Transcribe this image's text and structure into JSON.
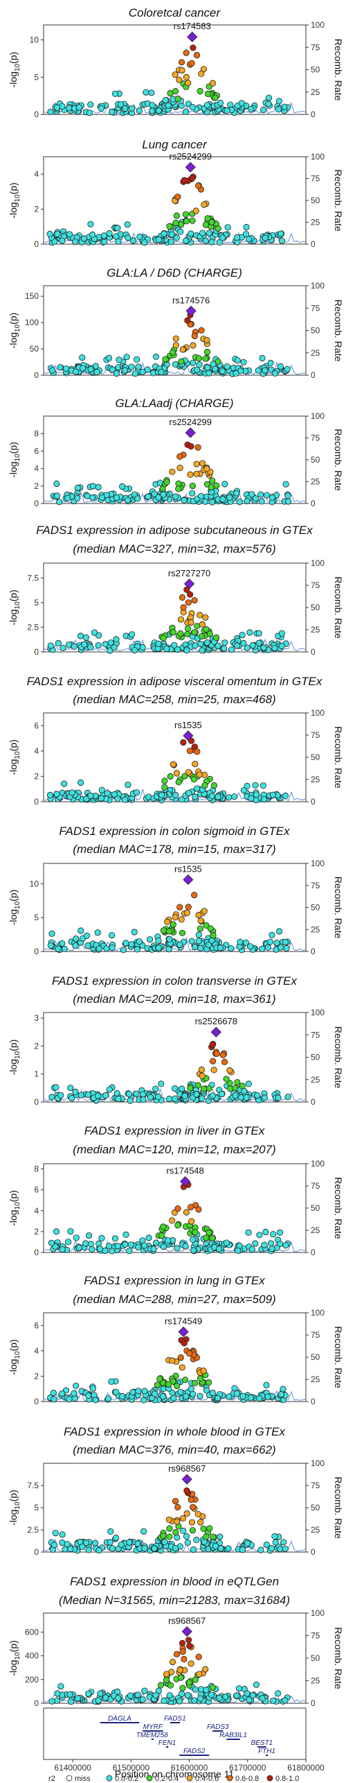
{
  "chart_data": [
    {
      "type": "scatter",
      "title": "Coloretcal cancer",
      "ylabel": "-log10(p)",
      "ylabel2": "Recomb. Rate",
      "ylim": [
        0,
        12
      ],
      "yticks": [
        0,
        5,
        10
      ],
      "lead_snp": "rs174583",
      "lead_x": 61605000,
      "lead_y": 10.4,
      "peak": 10.4
    },
    {
      "type": "scatter",
      "title": "Lung cancer",
      "ylabel": "-log10(p)",
      "ylabel2": "Recomb. Rate",
      "ylim": [
        0,
        5
      ],
      "yticks": [
        0,
        2,
        4
      ],
      "lead_snp": "rs2524299",
      "lead_x": 61602000,
      "lead_y": 4.4,
      "peak": 4.4
    },
    {
      "type": "scatter",
      "title": "GLA:LA / D6D (CHARGE)",
      "ylabel": "-log10(p)",
      "ylabel2": "Recomb. Rate",
      "ylim": [
        0,
        170
      ],
      "yticks": [
        0,
        50,
        100,
        150
      ],
      "lead_snp": "rs174576",
      "lead_x": 61603000,
      "lead_y": 122,
      "peak": 122
    },
    {
      "type": "scatter",
      "title": "GLA:LAadj (CHARGE)",
      "ylabel": "-log10(p)",
      "ylabel2": "Recomb. Rate",
      "ylim": [
        0,
        10
      ],
      "yticks": [
        0,
        2,
        4,
        6,
        8
      ],
      "lead_snp": "rs2524299",
      "lead_x": 61602000,
      "lead_y": 8.1,
      "peak": 8.1
    },
    {
      "type": "scatter",
      "title": "FADS1 expression in adipose subcutaneous in GTEx",
      "subtitle": "(median MAC=327, min=32, max=576)",
      "ylabel": "-log10(p)",
      "ylabel2": "Recomb. Rate",
      "ylim": [
        0,
        9
      ],
      "yticks": [
        0,
        2.5,
        5,
        7.5
      ],
      "lead_snp": "rs2727270",
      "lead_x": 61600000,
      "lead_y": 6.9,
      "peak": 6.9
    },
    {
      "type": "scatter",
      "title": "FADS1 expression in adipose visceral omentum in GTEx",
      "subtitle": "(median MAC=258, min=25, max=468)",
      "ylabel": "-log10(p)",
      "ylabel2": "Recomb. Rate",
      "ylim": [
        0,
        7
      ],
      "yticks": [
        0,
        2,
        4,
        6
      ],
      "lead_snp": "rs1535",
      "lead_x": 61598000,
      "lead_y": 5.2,
      "peak": 5.2
    },
    {
      "type": "scatter",
      "title": "FADS1 expression in colon sigmoid in GTEx",
      "subtitle": "(median MAC=178, min=15, max=317)",
      "ylabel": "-log10(p)",
      "ylabel2": "Recomb. Rate",
      "ylim": [
        0,
        13
      ],
      "yticks": [
        0,
        5,
        10
      ],
      "lead_snp": "rs1535",
      "lead_x": 61598000,
      "lead_y": 10.6,
      "peak": 10.6
    },
    {
      "type": "scatter",
      "title": "FADS1 expression in colon transverse in GTEx",
      "subtitle": "(median MAC=209, min=18, max=361)",
      "ylabel": "-log10(p)",
      "ylabel2": "Recomb. Rate",
      "ylim": [
        0,
        3.2
      ],
      "yticks": [
        0,
        1,
        2,
        3
      ],
      "lead_snp": "rs2526678",
      "lead_x": 61646000,
      "lead_y": 2.5,
      "peak": 2.3
    },
    {
      "type": "scatter",
      "title": "FADS1 expression in liver in GTEx",
      "subtitle": "(median MAC=120, min=12, max=207)",
      "ylabel": "-log10(p)",
      "ylabel2": "Recomb. Rate",
      "ylim": [
        0,
        8.5
      ],
      "yticks": [
        0,
        2,
        4,
        6,
        8
      ],
      "lead_snp": "rs174548",
      "lead_x": 61593000,
      "lead_y": 6.8,
      "peak": 6.8
    },
    {
      "type": "scatter",
      "title": "FADS1 expression in lung in GTEx",
      "subtitle": "(median MAC=288, min=27, max=509)",
      "ylabel": "-log10(p)",
      "ylabel2": "Recomb. Rate",
      "ylim": [
        0,
        7
      ],
      "yticks": [
        0,
        2,
        4,
        6
      ],
      "lead_snp": "rs174549",
      "lead_x": 61590000,
      "lead_y": 5.5,
      "peak": 5.5
    },
    {
      "type": "scatter",
      "title": "FADS1 expression in whole blood in GTEx",
      "subtitle": "(median MAC=376, min=40, max=662)",
      "ylabel": "-log10(p)",
      "ylabel2": "Recomb. Rate",
      "ylim": [
        0,
        10
      ],
      "yticks": [
        0,
        2.5,
        5,
        7.5
      ],
      "lead_snp": "rs968567",
      "lead_x": 61596000,
      "lead_y": 8.2,
      "peak": 8.2
    },
    {
      "type": "scatter",
      "title": "FADS1 expression in blood in eQTLGen",
      "subtitle": "(Median N=31565, min=21283, max=31684)",
      "ylabel": "-log10(p)",
      "ylabel2": "Recomb. Rate",
      "ylim": [
        0,
        760
      ],
      "yticks": [
        0,
        200,
        400,
        600
      ],
      "lead_snp": "rs968567",
      "lead_x": 61596000,
      "lead_y": 605,
      "peak": 605
    }
  ],
  "recomb_ticks": [
    0,
    25,
    50,
    75,
    100
  ],
  "x_axis": {
    "label": "Position on chromosome 11",
    "range": [
      61350000,
      61800000
    ],
    "ticks": [
      61400000,
      61500000,
      61600000,
      61700000,
      61800000
    ],
    "tick_labels": [
      "61400000",
      "61500000",
      "61600000",
      "61700000",
      "61800000"
    ]
  },
  "genes": [
    {
      "name": "DAGLA",
      "start": 61447000,
      "end": 61514000,
      "row": 0
    },
    {
      "name": "FADS1",
      "start": 61567000,
      "end": 61584000,
      "row": 0
    },
    {
      "name": "MYRF",
      "start": 61520000,
      "end": 61555000,
      "row": 1
    },
    {
      "name": "FADS3",
      "start": 61640000,
      "end": 61658000,
      "row": 1
    },
    {
      "name": "TMEM258",
      "start": 61535000,
      "end": 61537000,
      "row": 2
    },
    {
      "name": "RAB3IL1",
      "start": 61664000,
      "end": 61687000,
      "row": 2
    },
    {
      "name": "FEN1",
      "start": 61560000,
      "end": 61564000,
      "row": 3
    },
    {
      "name": "BEST1",
      "start": 61717000,
      "end": 61732000,
      "row": 3
    },
    {
      "name": "FADS2",
      "start": 61583000,
      "end": 61634000,
      "row": 4
    },
    {
      "name": "FTH1",
      "start": 61731000,
      "end": 61735000,
      "row": 4
    }
  ],
  "legend": {
    "title": "r2",
    "items": [
      {
        "label": "miss",
        "color": "#ffffff"
      },
      {
        "label": "0.0-0.2",
        "color": "#3fe0e0"
      },
      {
        "label": "0.2-0.4",
        "color": "#44d62c"
      },
      {
        "label": "0.4-0.6",
        "color": "#f5a623"
      },
      {
        "label": "0.6-0.8",
        "color": "#e86a10"
      },
      {
        "label": "0.8-1.0",
        "color": "#b7220f"
      }
    ]
  },
  "colors": {
    "lead": "#7b1fd6",
    "recomb": "#5b8fd9",
    "gene": "#1a237e"
  }
}
